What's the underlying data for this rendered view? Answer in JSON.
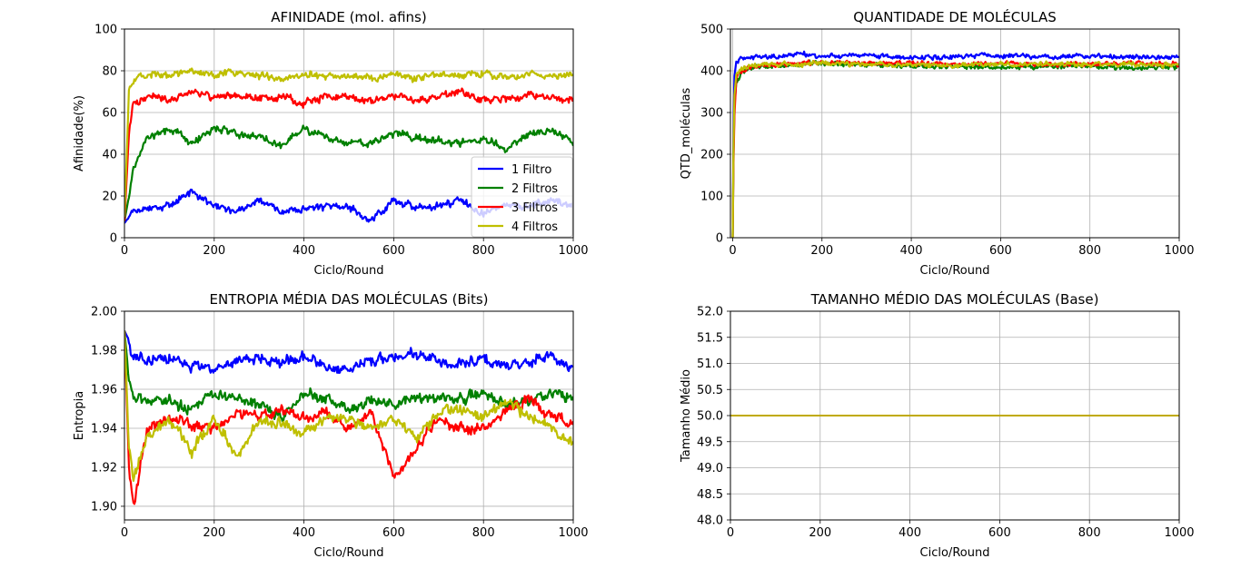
{
  "colors": {
    "s1": "#0000ff",
    "s2": "#008000",
    "s3": "#ff0000",
    "s4": "#bfbf00"
  },
  "chart_data": [
    {
      "id": "afinidade",
      "type": "line",
      "title": "AFINIDADE (mol. afins)",
      "xlabel": "Ciclo/Round",
      "ylabel": "Afinidade(%)",
      "xlim": [
        0,
        1000
      ],
      "ylim": [
        0,
        100
      ],
      "xticks": [
        0,
        200,
        400,
        600,
        800,
        1000
      ],
      "xtick_labels": [
        "0",
        "200",
        "400",
        "600",
        "800",
        "1000"
      ],
      "yticks": [
        0,
        20,
        40,
        60,
        80,
        100
      ],
      "ytick_labels": [
        "0",
        "20",
        "40",
        "60",
        "80",
        "100"
      ],
      "grid": true,
      "legend": "lower-right",
      "series": [
        {
          "name": "1 Filtro",
          "color_key": "s1",
          "x": [
            0,
            10,
            20,
            50,
            100,
            150,
            200,
            250,
            300,
            350,
            400,
            450,
            500,
            550,
            600,
            650,
            700,
            750,
            800,
            850,
            900,
            950,
            1000
          ],
          "values": [
            7,
            10,
            12,
            14,
            16,
            22,
            15,
            12,
            18,
            12,
            14,
            15,
            14,
            8,
            18,
            14,
            15,
            18,
            12,
            16,
            15,
            18,
            15
          ]
        },
        {
          "name": "2 Filtros",
          "color_key": "s2",
          "x": [
            0,
            10,
            20,
            50,
            100,
            150,
            200,
            250,
            300,
            350,
            400,
            450,
            500,
            550,
            600,
            650,
            700,
            750,
            800,
            850,
            900,
            950,
            1000
          ],
          "values": [
            8,
            20,
            32,
            48,
            52,
            46,
            52,
            50,
            48,
            44,
            52,
            48,
            46,
            45,
            50,
            48,
            46,
            45,
            48,
            42,
            50,
            52,
            45
          ]
        },
        {
          "name": "3 Filtros",
          "color_key": "s3",
          "x": [
            0,
            10,
            20,
            50,
            100,
            150,
            200,
            250,
            300,
            350,
            400,
            450,
            500,
            550,
            600,
            650,
            700,
            750,
            800,
            850,
            900,
            950,
            1000
          ],
          "values": [
            8,
            50,
            64,
            68,
            66,
            70,
            68,
            68,
            66,
            68,
            64,
            68,
            67,
            66,
            68,
            65,
            68,
            70,
            66,
            66,
            68,
            67,
            66
          ]
        },
        {
          "name": "4 Filtros",
          "color_key": "s4",
          "x": [
            0,
            10,
            20,
            50,
            100,
            150,
            200,
            250,
            300,
            350,
            400,
            450,
            500,
            550,
            600,
            650,
            700,
            750,
            800,
            850,
            900,
            950,
            1000
          ],
          "values": [
            10,
            70,
            76,
            78,
            78,
            79,
            78,
            80,
            77,
            76,
            78,
            77,
            78,
            76,
            79,
            76,
            79,
            78,
            78,
            77,
            79,
            78,
            78
          ]
        }
      ]
    },
    {
      "id": "quantidade",
      "type": "line",
      "title": "QUANTIDADE DE MOLÉCULAS",
      "xlabel": "Ciclo/Round",
      "ylabel": "QTD_moléculas",
      "xlim": [
        -5,
        1000
      ],
      "ylim": [
        0,
        500
      ],
      "xticks": [
        0,
        200,
        400,
        600,
        800,
        1000
      ],
      "xtick_labels": [
        "0",
        "200",
        "400",
        "600",
        "800",
        "1000"
      ],
      "yticks": [
        0,
        100,
        200,
        300,
        400,
        500
      ],
      "ytick_labels": [
        "0",
        "100",
        "200",
        "300",
        "400",
        "500"
      ],
      "grid": true,
      "series": [
        {
          "color_key": "s1",
          "x": [
            0,
            3,
            8,
            20,
            50,
            100,
            150,
            200,
            300,
            400,
            500,
            600,
            700,
            800,
            900,
            1000
          ],
          "values": [
            0,
            380,
            420,
            430,
            435,
            432,
            440,
            434,
            436,
            432,
            434,
            436,
            433,
            435,
            434,
            433
          ]
        },
        {
          "color_key": "s2",
          "x": [
            0,
            3,
            8,
            20,
            50,
            100,
            150,
            200,
            300,
            400,
            500,
            600,
            700,
            800,
            900,
            1000
          ],
          "values": [
            0,
            300,
            370,
            395,
            410,
            412,
            415,
            418,
            414,
            410,
            412,
            408,
            410,
            412,
            405,
            410
          ]
        },
        {
          "color_key": "s3",
          "x": [
            0,
            3,
            8,
            20,
            50,
            100,
            150,
            200,
            300,
            400,
            500,
            600,
            700,
            800,
            900,
            1000
          ],
          "values": [
            0,
            270,
            380,
            400,
            410,
            415,
            418,
            420,
            416,
            418,
            416,
            418,
            415,
            416,
            418,
            416
          ]
        },
        {
          "color_key": "s4",
          "x": [
            0,
            3,
            8,
            20,
            50,
            100,
            150,
            200,
            300,
            400,
            500,
            600,
            700,
            800,
            900,
            1000
          ],
          "values": [
            0,
            330,
            390,
            405,
            412,
            416,
            414,
            418,
            415,
            416,
            412,
            414,
            416,
            414,
            415,
            414
          ]
        }
      ]
    },
    {
      "id": "entropia",
      "type": "line",
      "title": "ENTROPIA MÉDIA DAS MOLÉCULAS (Bits)",
      "xlabel": "Ciclo/Round",
      "ylabel": "Entropia",
      "xlim": [
        0,
        1000
      ],
      "ylim": [
        1.893,
        2.0
      ],
      "xticks": [
        0,
        200,
        400,
        600,
        800,
        1000
      ],
      "xtick_labels": [
        "0",
        "200",
        "400",
        "600",
        "800",
        "1000"
      ],
      "yticks": [
        1.9,
        1.92,
        1.94,
        1.96,
        1.98,
        2.0
      ],
      "ytick_labels": [
        "1.90",
        "1.92",
        "1.94",
        "1.96",
        "1.98",
        "2.00"
      ],
      "grid": true,
      "series": [
        {
          "color_key": "s1",
          "x": [
            0,
            10,
            20,
            50,
            100,
            150,
            200,
            250,
            300,
            350,
            400,
            450,
            500,
            550,
            600,
            650,
            700,
            750,
            800,
            850,
            900,
            950,
            1000
          ],
          "values": [
            1.99,
            1.985,
            1.976,
            1.975,
            1.977,
            1.972,
            1.97,
            1.975,
            1.976,
            1.974,
            1.976,
            1.972,
            1.97,
            1.975,
            1.976,
            1.978,
            1.974,
            1.973,
            1.976,
            1.972,
            1.974,
            1.978,
            1.97
          ]
        },
        {
          "color_key": "s2",
          "x": [
            0,
            10,
            20,
            50,
            100,
            150,
            200,
            250,
            300,
            350,
            400,
            450,
            500,
            550,
            600,
            650,
            700,
            750,
            800,
            850,
            900,
            950,
            1000
          ],
          "values": [
            1.99,
            1.965,
            1.955,
            1.955,
            1.953,
            1.95,
            1.958,
            1.955,
            1.952,
            1.945,
            1.958,
            1.955,
            1.95,
            1.955,
            1.952,
            1.955,
            1.954,
            1.955,
            1.958,
            1.952,
            1.955,
            1.958,
            1.955
          ]
        },
        {
          "color_key": "s3",
          "x": [
            0,
            10,
            20,
            50,
            100,
            150,
            200,
            250,
            300,
            350,
            400,
            450,
            500,
            550,
            600,
            650,
            700,
            750,
            800,
            850,
            900,
            950,
            1000
          ],
          "values": [
            1.99,
            1.92,
            1.9,
            1.94,
            1.945,
            1.942,
            1.94,
            1.948,
            1.945,
            1.95,
            1.945,
            1.948,
            1.94,
            1.948,
            1.915,
            1.93,
            1.945,
            1.94,
            1.94,
            1.95,
            1.955,
            1.945,
            1.942
          ]
        },
        {
          "color_key": "s4",
          "x": [
            0,
            10,
            20,
            50,
            100,
            150,
            200,
            250,
            300,
            350,
            400,
            450,
            500,
            550,
            600,
            650,
            700,
            750,
            800,
            850,
            900,
            950,
            1000
          ],
          "values": [
            1.99,
            1.93,
            1.915,
            1.935,
            1.945,
            1.928,
            1.945,
            1.925,
            1.945,
            1.942,
            1.938,
            1.945,
            1.945,
            1.94,
            1.945,
            1.935,
            1.948,
            1.95,
            1.945,
            1.955,
            1.945,
            1.94,
            1.932
          ]
        }
      ]
    },
    {
      "id": "tamanho",
      "type": "line",
      "title": "TAMANHO MÉDIO DAS MOLÉCULAS (Base)",
      "xlabel": "Ciclo/Round",
      "ylabel": "Tamanho Médio",
      "xlim": [
        0,
        1000
      ],
      "ylim": [
        48.0,
        52.0
      ],
      "xticks": [
        0,
        200,
        400,
        600,
        800,
        1000
      ],
      "xtick_labels": [
        "0",
        "200",
        "400",
        "600",
        "800",
        "1000"
      ],
      "yticks": [
        48.0,
        48.5,
        49.0,
        49.5,
        50.0,
        50.5,
        51.0,
        51.5,
        52.0
      ],
      "ytick_labels": [
        "48.0",
        "48.5",
        "49.0",
        "49.5",
        "50.0",
        "50.5",
        "51.0",
        "51.5",
        "52.0"
      ],
      "grid": true,
      "series": [
        {
          "color_key": "s1",
          "x": [
            0,
            1000
          ],
          "values": [
            50.0,
            50.0
          ]
        },
        {
          "color_key": "s2",
          "x": [
            0,
            1000
          ],
          "values": [
            50.0,
            50.0
          ]
        },
        {
          "color_key": "s3",
          "x": [
            0,
            1000
          ],
          "values": [
            50.0,
            50.0
          ]
        },
        {
          "color_key": "s4",
          "x": [
            0,
            1000
          ],
          "values": [
            50.0,
            50.0
          ]
        }
      ]
    }
  ]
}
